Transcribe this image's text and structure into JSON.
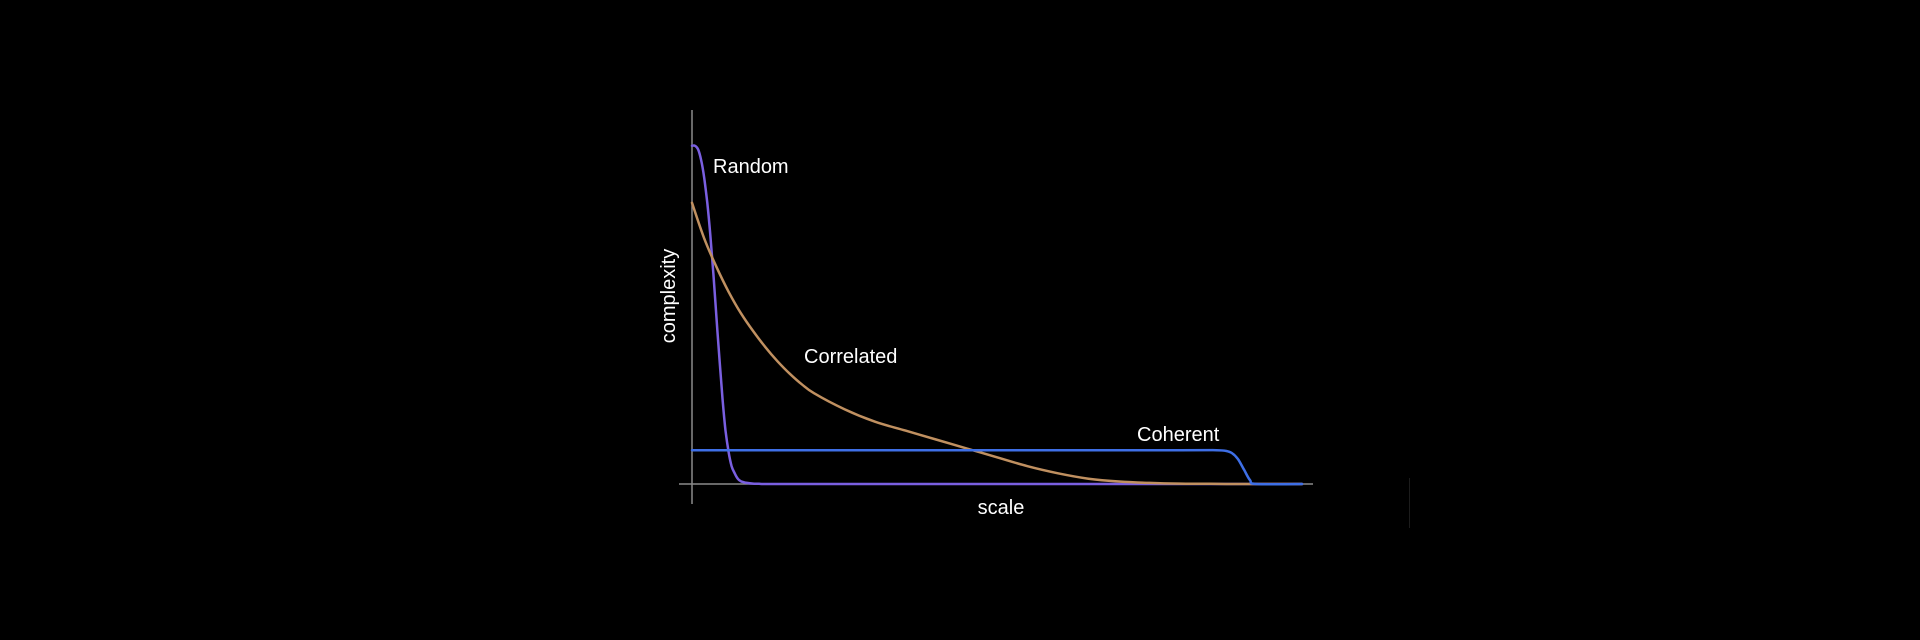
{
  "chart_data": {
    "type": "line",
    "xlabel": "scale",
    "ylabel": "complexity",
    "xlim": [
      0,
      100
    ],
    "ylim": [
      0,
      100
    ],
    "grid": false,
    "legend": "none",
    "axes_color": "#8a8a8a",
    "series": [
      {
        "name": "Random",
        "color": "#7a5fe0",
        "x": [
          0,
          0.5,
          1,
          1.5,
          2,
          2.5,
          3,
          3.5,
          4,
          4.5,
          5,
          5.5,
          6,
          6.5,
          7,
          7.5,
          8,
          9,
          10,
          11,
          12,
          14,
          20,
          40,
          60,
          80,
          100
        ],
        "y": [
          95,
          95,
          94,
          91,
          86,
          79,
          70,
          59,
          47,
          35,
          24,
          15,
          9,
          5,
          3,
          1.5,
          0.8,
          0.3,
          0.1,
          0.05,
          0,
          0,
          0,
          0,
          0,
          0,
          0
        ]
      },
      {
        "name": "Correlated",
        "color": "#c09060",
        "x": [
          0,
          2,
          4,
          6,
          8,
          10,
          12,
          14,
          16,
          18,
          20,
          25,
          30,
          35,
          40,
          45,
          50,
          55,
          60,
          65,
          70,
          75,
          80,
          85,
          90,
          95,
          100
        ],
        "y": [
          79,
          69,
          61,
          54,
          48,
          43,
          38.5,
          34.5,
          31,
          28,
          25.5,
          21,
          17.5,
          15,
          12.5,
          10,
          7.5,
          5,
          3,
          1.5,
          0.7,
          0.3,
          0.1,
          0.05,
          0,
          0,
          0
        ]
      },
      {
        "name": "Coherent",
        "color": "#3e6fe6",
        "x": [
          0,
          20,
          40,
          60,
          80,
          86,
          87.5,
          88.5,
          89.5,
          90.5,
          91.5,
          92.5,
          100
        ],
        "y": [
          9.5,
          9.5,
          9.5,
          9.5,
          9.5,
          9.5,
          9.3,
          8.7,
          7,
          4,
          1,
          0,
          0
        ]
      }
    ],
    "annotations": [
      "Random",
      "Correlated",
      "Coherent"
    ]
  }
}
